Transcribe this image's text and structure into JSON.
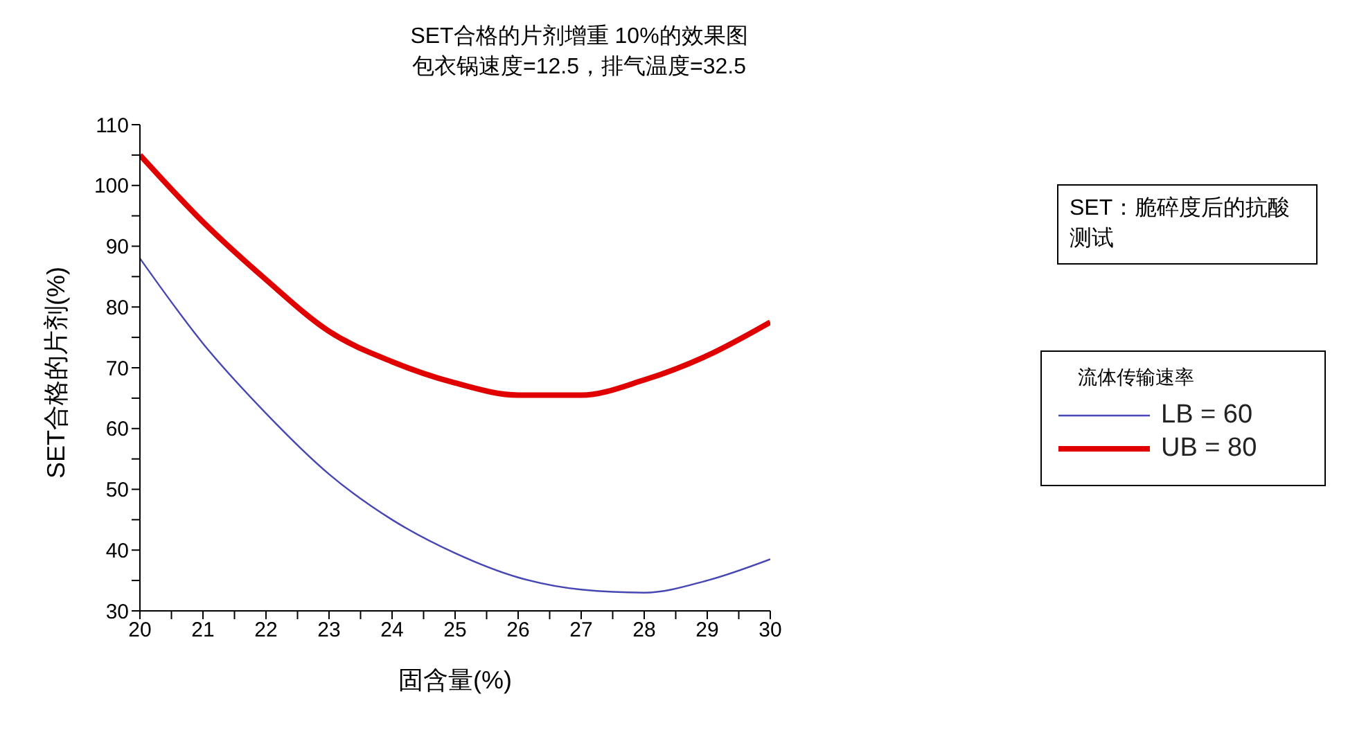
{
  "chart_data": {
    "type": "line",
    "title": "SET合格的片剂增重 10%的效果图",
    "subtitle": "包衣锅速度=12.5，排气温度=32.5",
    "xlabel": "固含量(%)",
    "ylabel": "SET合格的片剂(%)",
    "legend_title": "流体传输速率",
    "annotations": [
      "SET：脆碎度后的抗酸测试"
    ],
    "x": [
      20,
      21,
      22,
      23,
      24,
      25,
      26,
      27,
      28,
      29,
      30
    ],
    "series": [
      {
        "name": "LB = 60",
        "color": "#4646b4",
        "values": [
          88,
          74,
          62.5,
          52.5,
          45,
          39.5,
          35.5,
          33.5,
          33,
          35,
          38.5
        ]
      },
      {
        "name": "UB = 80",
        "color": "#e00000",
        "values": [
          105,
          94,
          84.5,
          76,
          71,
          67.5,
          65.5,
          65.5,
          68,
          72,
          77.5
        ]
      }
    ],
    "xlim": [
      20,
      30
    ],
    "ylim": [
      30,
      110
    ],
    "xticks": [
      20,
      {
        "value": 20.5,
        "label": null
      },
      21,
      {
        "value": 21.5,
        "label": null
      },
      22,
      {
        "value": 22.5,
        "label": null
      },
      23,
      {
        "value": 23.5,
        "label": null
      },
      24,
      {
        "value": 24.5,
        "label": null
      },
      25,
      {
        "value": 25.5,
        "label": null
      },
      26,
      {
        "value": 26.5,
        "label": null
      },
      27,
      {
        "value": 27.5,
        "label": null
      },
      28,
      {
        "value": 28.5,
        "label": null
      },
      29,
      {
        "value": 29.5,
        "label": null
      },
      30
    ],
    "yticks": [
      30,
      {
        "value": 35,
        "label": null
      },
      40,
      {
        "value": 45,
        "label": null
      },
      50,
      {
        "value": 55,
        "label": null
      },
      60,
      {
        "value": 65,
        "label": null
      },
      70,
      {
        "value": 75,
        "label": null
      },
      80,
      {
        "value": 85,
        "label": null
      },
      90,
      {
        "value": 95,
        "label": null
      },
      100,
      {
        "value": 105,
        "label": null
      },
      110
    ],
    "grid": false,
    "legend": "right",
    "marker": "none",
    "line_style": "solid"
  }
}
